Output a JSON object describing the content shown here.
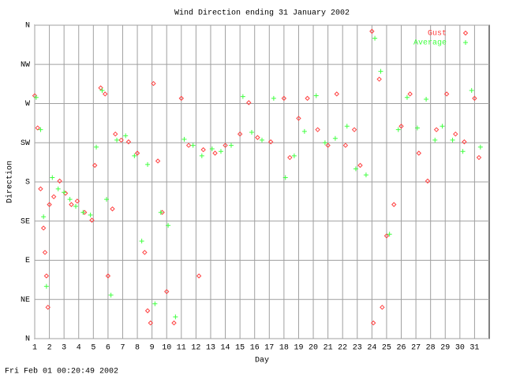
{
  "chart_data": {
    "type": "scatter",
    "title": "Wind Direction ending 31 January 2002",
    "x_label": "Day",
    "y_label": "Direction",
    "footer": "Fri Feb 01 00:20:49 2002",
    "xlim": [
      1,
      32
    ],
    "ylim": [
      0,
      360
    ],
    "xticks": [
      1,
      2,
      3,
      4,
      5,
      6,
      7,
      8,
      9,
      10,
      11,
      12,
      13,
      14,
      15,
      16,
      17,
      18,
      19,
      20,
      21,
      22,
      23,
      24,
      25,
      26,
      27,
      28,
      29,
      30,
      31
    ],
    "yticks": [
      {
        "value": 0,
        "label": "N"
      },
      {
        "value": 45,
        "label": "NE"
      },
      {
        "value": 90,
        "label": "E"
      },
      {
        "value": 135,
        "label": "SE"
      },
      {
        "value": 180,
        "label": "S"
      },
      {
        "value": 225,
        "label": "SW"
      },
      {
        "value": 270,
        "label": "W"
      },
      {
        "value": 315,
        "label": "NW"
      },
      {
        "value": 360,
        "label": "N"
      }
    ],
    "grid": true,
    "legend": "top-right",
    "series": [
      {
        "name": "Gust",
        "color": "#ff4040",
        "marker": "diamond",
        "x": [
          1.0,
          1.2,
          1.4,
          1.6,
          1.7,
          1.8,
          1.9,
          2.0,
          2.3,
          2.7,
          3.1,
          3.5,
          3.9,
          4.4,
          4.9,
          5.1,
          5.5,
          5.8,
          6.0,
          6.3,
          6.5,
          6.9,
          7.4,
          8.0,
          8.5,
          8.7,
          8.9,
          9.1,
          9.4,
          9.7,
          10.0,
          10.5,
          11.0,
          11.5,
          12.2,
          12.5,
          13.3,
          14.0,
          15.0,
          15.6,
          16.2,
          17.1,
          18.0,
          18.4,
          19.0,
          19.6,
          20.3,
          21.0,
          21.6,
          22.2,
          22.8,
          23.2,
          24.0,
          24.1,
          24.5,
          24.7,
          25.0,
          25.5,
          26.0,
          26.6,
          27.2,
          27.8,
          28.4,
          29.1,
          29.7,
          30.3,
          31.0,
          31.3
        ],
        "values": [
          279,
          242,
          172,
          127,
          99,
          72,
          36,
          154,
          163,
          181,
          167,
          154,
          158,
          145,
          136,
          199,
          288,
          281,
          72,
          149,
          235,
          228,
          226,
          213,
          99,
          32,
          18,
          293,
          204,
          145,
          54,
          18,
          276,
          222,
          72,
          217,
          213,
          222,
          235,
          271,
          231,
          226,
          276,
          208,
          253,
          276,
          240,
          222,
          281,
          222,
          240,
          199,
          353,
          18,
          298,
          36,
          118,
          154,
          244,
          281,
          213,
          181,
          240,
          281,
          235,
          226,
          276,
          208
        ]
      },
      {
        "name": "Average",
        "color": "#40ff40",
        "marker": "plus",
        "x": [
          1.1,
          1.4,
          1.6,
          1.8,
          2.2,
          2.6,
          3.0,
          3.4,
          3.8,
          4.3,
          4.8,
          5.2,
          5.6,
          5.9,
          6.2,
          6.6,
          7.2,
          7.8,
          8.3,
          8.7,
          9.2,
          9.6,
          10.1,
          10.6,
          11.2,
          11.8,
          12.4,
          13.1,
          13.7,
          14.4,
          15.2,
          15.8,
          16.5,
          17.3,
          18.1,
          18.7,
          19.4,
          20.2,
          20.8,
          21.5,
          22.3,
          22.9,
          23.6,
          24.2,
          24.6,
          25.2,
          25.8,
          26.4,
          27.1,
          27.7,
          28.3,
          28.8,
          29.5,
          30.2,
          30.8,
          31.4
        ],
        "values": [
          277,
          240,
          140,
          60,
          185,
          172,
          168,
          160,
          152,
          145,
          142,
          220,
          285,
          160,
          50,
          228,
          233,
          210,
          112,
          200,
          40,
          145,
          130,
          25,
          229,
          222,
          210,
          218,
          215,
          222,
          278,
          237,
          228,
          276,
          185,
          210,
          238,
          279,
          225,
          230,
          244,
          195,
          188,
          345,
          307,
          120,
          240,
          277,
          242,
          275,
          228,
          244,
          228,
          215,
          285,
          220
        ]
      }
    ]
  }
}
